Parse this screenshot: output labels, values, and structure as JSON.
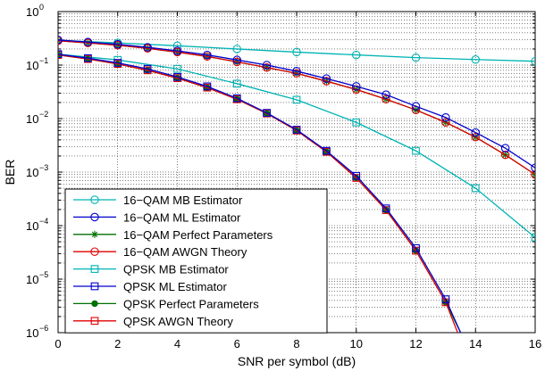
{
  "chart_data": {
    "type": "line",
    "xlabel": "SNR per symbol (dB)",
    "ylabel": "BER",
    "xlim": [
      0,
      16
    ],
    "ylim": [
      1e-06,
      1
    ],
    "yscale": "log",
    "grid": true,
    "legend_position": "bottom-left",
    "x_ticks": [
      0,
      2,
      4,
      6,
      8,
      10,
      12,
      14,
      16
    ],
    "x_tick_labels": [
      "0",
      "2",
      "4",
      "6",
      "8",
      "10",
      "12",
      "14",
      "16"
    ],
    "y_ticks": [
      {
        "value": 1,
        "base": "10",
        "exp": "0"
      },
      {
        "value": 0.1,
        "base": "10",
        "exp": "−1"
      },
      {
        "value": 0.01,
        "base": "10",
        "exp": "−2"
      },
      {
        "value": 0.001,
        "base": "10",
        "exp": "−3"
      },
      {
        "value": 0.0001,
        "base": "10",
        "exp": "−4"
      },
      {
        "value": 1e-05,
        "base": "10",
        "exp": "−5"
      },
      {
        "value": 1e-06,
        "base": "10",
        "exp": "−6"
      }
    ],
    "x": [
      0,
      1,
      2,
      3,
      4,
      5,
      6,
      7,
      8,
      9,
      10,
      11,
      12,
      13,
      14,
      15,
      16
    ],
    "series": [
      {
        "name": "16−QAM MB Estimator",
        "color": "#00b3b3",
        "marker": "circle",
        "x": [
          0,
          2,
          4,
          6,
          8,
          10,
          12,
          14,
          16
        ],
        "values": [
          0.29,
          0.26,
          0.23,
          0.2,
          0.175,
          0.155,
          0.138,
          0.127,
          0.118
        ]
      },
      {
        "name": "16−QAM ML Estimator",
        "color": "#0000cc",
        "marker": "circle",
        "x": [
          0,
          1,
          2,
          3,
          4,
          5,
          6,
          7,
          8,
          9,
          10,
          11,
          12,
          13,
          14,
          15,
          16
        ],
        "values": [
          0.295,
          0.27,
          0.245,
          0.215,
          0.185,
          0.155,
          0.125,
          0.1,
          0.077,
          0.056,
          0.04,
          0.028,
          0.017,
          0.0105,
          0.0055,
          0.0028,
          0.0012
        ]
      },
      {
        "name": "16−QAM Perfect Parameters",
        "color": "#007000",
        "marker": "star",
        "x": [
          0,
          1,
          2,
          3,
          4,
          5,
          6,
          7,
          8,
          9,
          10,
          11,
          12,
          13,
          14,
          15,
          16
        ],
        "values": [
          0.285,
          0.26,
          0.235,
          0.205,
          0.175,
          0.145,
          0.115,
          0.09,
          0.07,
          0.05,
          0.035,
          0.023,
          0.0145,
          0.0085,
          0.0045,
          0.0021,
          0.0009
        ]
      },
      {
        "name": "16−QAM AWGN Theory",
        "color": "#e00000",
        "marker": "circle",
        "x": [
          0,
          1,
          2,
          3,
          4,
          5,
          6,
          7,
          8,
          9,
          10,
          11,
          12,
          13,
          14,
          15,
          16
        ],
        "values": [
          0.285,
          0.26,
          0.235,
          0.205,
          0.175,
          0.145,
          0.115,
          0.09,
          0.07,
          0.05,
          0.035,
          0.023,
          0.0145,
          0.0085,
          0.0045,
          0.0021,
          0.0009
        ]
      },
      {
        "name": "QPSK MB Estimator",
        "color": "#00b3b3",
        "marker": "square",
        "x": [
          0,
          2,
          4,
          6,
          8,
          10,
          12,
          14,
          16
        ],
        "values": [
          0.16,
          0.125,
          0.085,
          0.045,
          0.0225,
          0.0085,
          0.0025,
          0.0005,
          6e-05
        ]
      },
      {
        "name": "QPSK ML Estimator",
        "color": "#0000cc",
        "marker": "square",
        "x": [
          0,
          1,
          2,
          3,
          4,
          5,
          6,
          7,
          8,
          9,
          10,
          11,
          12,
          13,
          13.5
        ],
        "values": [
          0.16,
          0.135,
          0.11,
          0.085,
          0.06,
          0.04,
          0.024,
          0.0128,
          0.0062,
          0.0025,
          0.00085,
          0.00021,
          3.8e-05,
          4.2e-06,
          1e-06
        ]
      },
      {
        "name": "QPSK Perfect Parameters",
        "color": "#007000",
        "marker": "dot",
        "x": [
          0,
          1,
          2,
          3,
          4,
          5,
          6,
          7,
          8,
          9,
          10,
          11,
          12,
          13,
          13.5
        ],
        "values": [
          0.155,
          0.13,
          0.105,
          0.08,
          0.057,
          0.038,
          0.023,
          0.0125,
          0.006,
          0.0024,
          0.00078,
          0.000195,
          3.4e-05,
          3.7e-06,
          1e-06
        ]
      },
      {
        "name": "QPSK AWGN Theory",
        "color": "#e00000",
        "marker": "square",
        "x": [
          0,
          1,
          2,
          3,
          4,
          5,
          6,
          7,
          8,
          9,
          10,
          11,
          12,
          13,
          13.4
        ],
        "values": [
          0.155,
          0.13,
          0.105,
          0.08,
          0.057,
          0.038,
          0.023,
          0.0125,
          0.006,
          0.0024,
          0.00078,
          0.000195,
          3.4e-05,
          3.7e-06,
          1e-06
        ]
      }
    ]
  }
}
